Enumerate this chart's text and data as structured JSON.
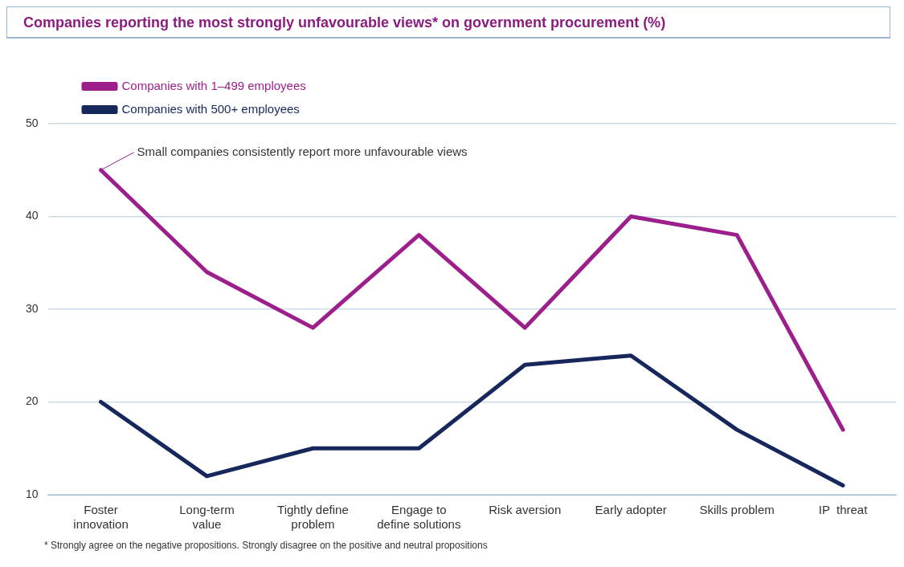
{
  "chart_data": {
    "type": "line",
    "title": "Companies reporting the most strongly unfavourable views* on government procurement (%)",
    "categories": [
      "Foster\ninnovation",
      "Long-term\nvalue",
      "Tightly define\nproblem",
      "Engage to\ndefine solutions",
      "Risk aversion",
      "Early adopter",
      "Skills problem",
      "IP  threat"
    ],
    "series": [
      {
        "name": "Companies with 1–499 employees",
        "color": "#9c1f8c",
        "values": [
          45,
          34,
          28,
          38,
          28,
          40,
          38,
          17
        ]
      },
      {
        "name": "Companies with 500+ employees",
        "color": "#16275c",
        "values": [
          20,
          12,
          15,
          15,
          24,
          25,
          17,
          11
        ]
      }
    ],
    "ylim": [
      10,
      50
    ],
    "yticks": [
      10,
      20,
      30,
      40,
      50
    ],
    "grid": "y",
    "legend": "top left",
    "marker": "none",
    "line_style": "solid",
    "annotations": [
      {
        "text": "Small companies consistently report more unfavourable views",
        "x": "Foster\ninnovation",
        "y": 45
      },
      "*  Strongly agree on the negative propositions. Strongly disagree on the positive and neutral propositions"
    ]
  }
}
